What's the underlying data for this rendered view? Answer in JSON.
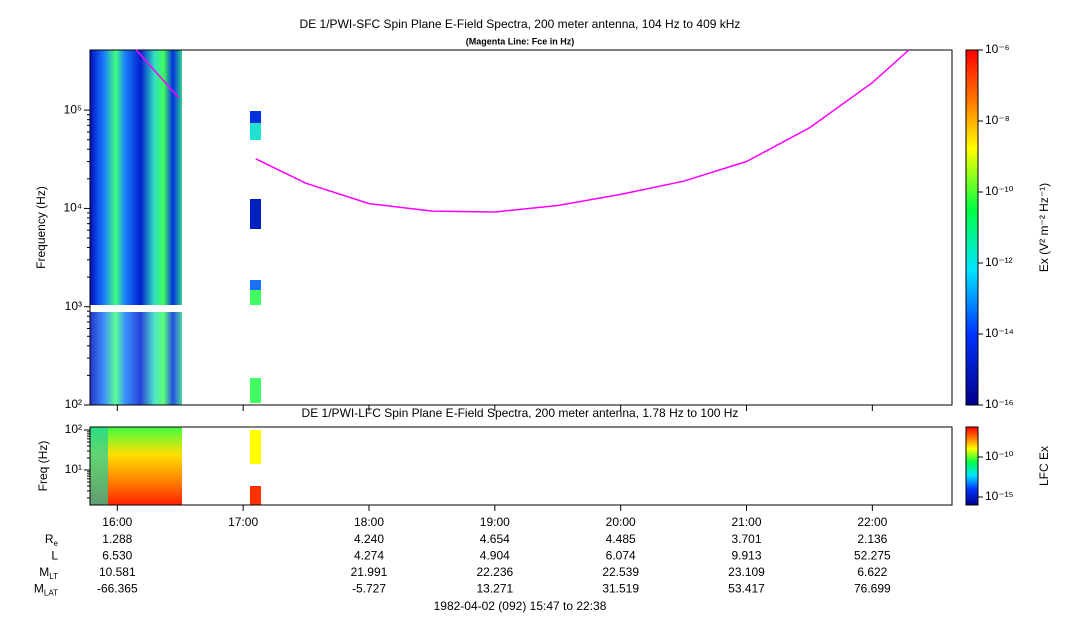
{
  "chart_data": [
    {
      "type": "spectrogram",
      "title": "DE 1/PWI-SFC  Spin Plane E-Field Spectra, 200 meter antenna, 104 Hz to 409 kHz",
      "subtitle": "(Magenta Line: Fce in Hz)",
      "y_label": "Frequency (Hz)",
      "xlim": [
        15.783,
        22.633
      ],
      "xticks": [
        16,
        17,
        18,
        19,
        20,
        21,
        22
      ],
      "ylim": [
        100,
        409000
      ],
      "log_y": true,
      "yticks": [
        {
          "value": 100,
          "label": "10²"
        },
        {
          "value": 1000,
          "label": "10³"
        },
        {
          "value": 10000,
          "label": "10⁴"
        },
        {
          "value": 100000,
          "label": "10⁵"
        }
      ],
      "colorbar": {
        "label": "Ex (V² m⁻² Hz⁻¹)",
        "lim": [
          1e-16,
          1e-06
        ],
        "ticks": [
          {
            "value": 1e-06,
            "label": "10⁻⁶"
          },
          {
            "value": 1e-08,
            "label": "10⁻⁸"
          },
          {
            "value": 1e-10,
            "label": "10⁻¹⁰"
          },
          {
            "value": 1e-12,
            "label": "10⁻¹²"
          },
          {
            "value": 1e-14,
            "label": "10⁻¹⁴"
          },
          {
            "value": 1e-16,
            "label": "10⁻¹⁶"
          }
        ]
      },
      "series": [
        {
          "color": "#ff00ff",
          "x": [
            16.15,
            16.49,
            16.8,
            17.1,
            17.5,
            18.0,
            18.5,
            19.0,
            19.5,
            20.0,
            20.5,
            21.0,
            21.5,
            22.0,
            22.29
          ],
          "values": [
            409000,
            133000,
            null,
            32000,
            18000,
            11200,
            9400,
            9200,
            10700,
            13900,
            18900,
            30000,
            66000,
            190000,
            409000
          ]
        }
      ]
    },
    {
      "type": "spectrogram",
      "title": "DE 1/PWI-LFC  Spin Plane E-Field Spectra, 200 meter antenna, 1.78 Hz to 100 Hz",
      "y_label": "Freq (Hz)",
      "xlim": [
        15.783,
        22.633
      ],
      "xticks": [
        {
          "value": 16,
          "label": "16:00"
        },
        {
          "value": 17,
          "label": "17:00"
        },
        {
          "value": 18,
          "label": "18:00"
        },
        {
          "value": 19,
          "label": "19:00"
        },
        {
          "value": 20,
          "label": "20:00"
        },
        {
          "value": 21,
          "label": "21:00"
        },
        {
          "value": 22,
          "label": "22:00"
        }
      ],
      "ylim": [
        1.33,
        119
      ],
      "log_y": true,
      "yticks": [
        {
          "value": 10,
          "label": "10¹"
        },
        {
          "value": 100,
          "label": "10²"
        }
      ],
      "colorbar": {
        "label": "LFC Ex",
        "lim": [
          1e-16,
          5.6e-07
        ],
        "ticks": [
          {
            "value": 1e-10,
            "label": "10⁻¹⁰"
          },
          {
            "value": 1e-15,
            "label": "10⁻¹⁵"
          }
        ]
      }
    }
  ],
  "ephemeris": {
    "rows": [
      {
        "label": "R",
        "sub": "e",
        "values": [
          "1.288",
          null,
          "4.240",
          "4.654",
          "4.485",
          "3.701",
          "2.136"
        ]
      },
      {
        "label": "L",
        "values": [
          "6.530",
          null,
          "4.274",
          "4.904",
          "6.074",
          "9.913",
          "52.275"
        ]
      },
      {
        "label": "M",
        "sub": "LT",
        "values": [
          "10.581",
          null,
          "21.991",
          "22.236",
          "22.539",
          "23.109",
          "6.622"
        ]
      },
      {
        "label": "M",
        "sub": "LAT",
        "values": [
          "-66.365",
          null,
          "-5.727",
          "13.271",
          "31.519",
          "53.417",
          "76.699"
        ]
      }
    ],
    "footer": "1982-04-02 (092) 15:47 to 22:38"
  }
}
